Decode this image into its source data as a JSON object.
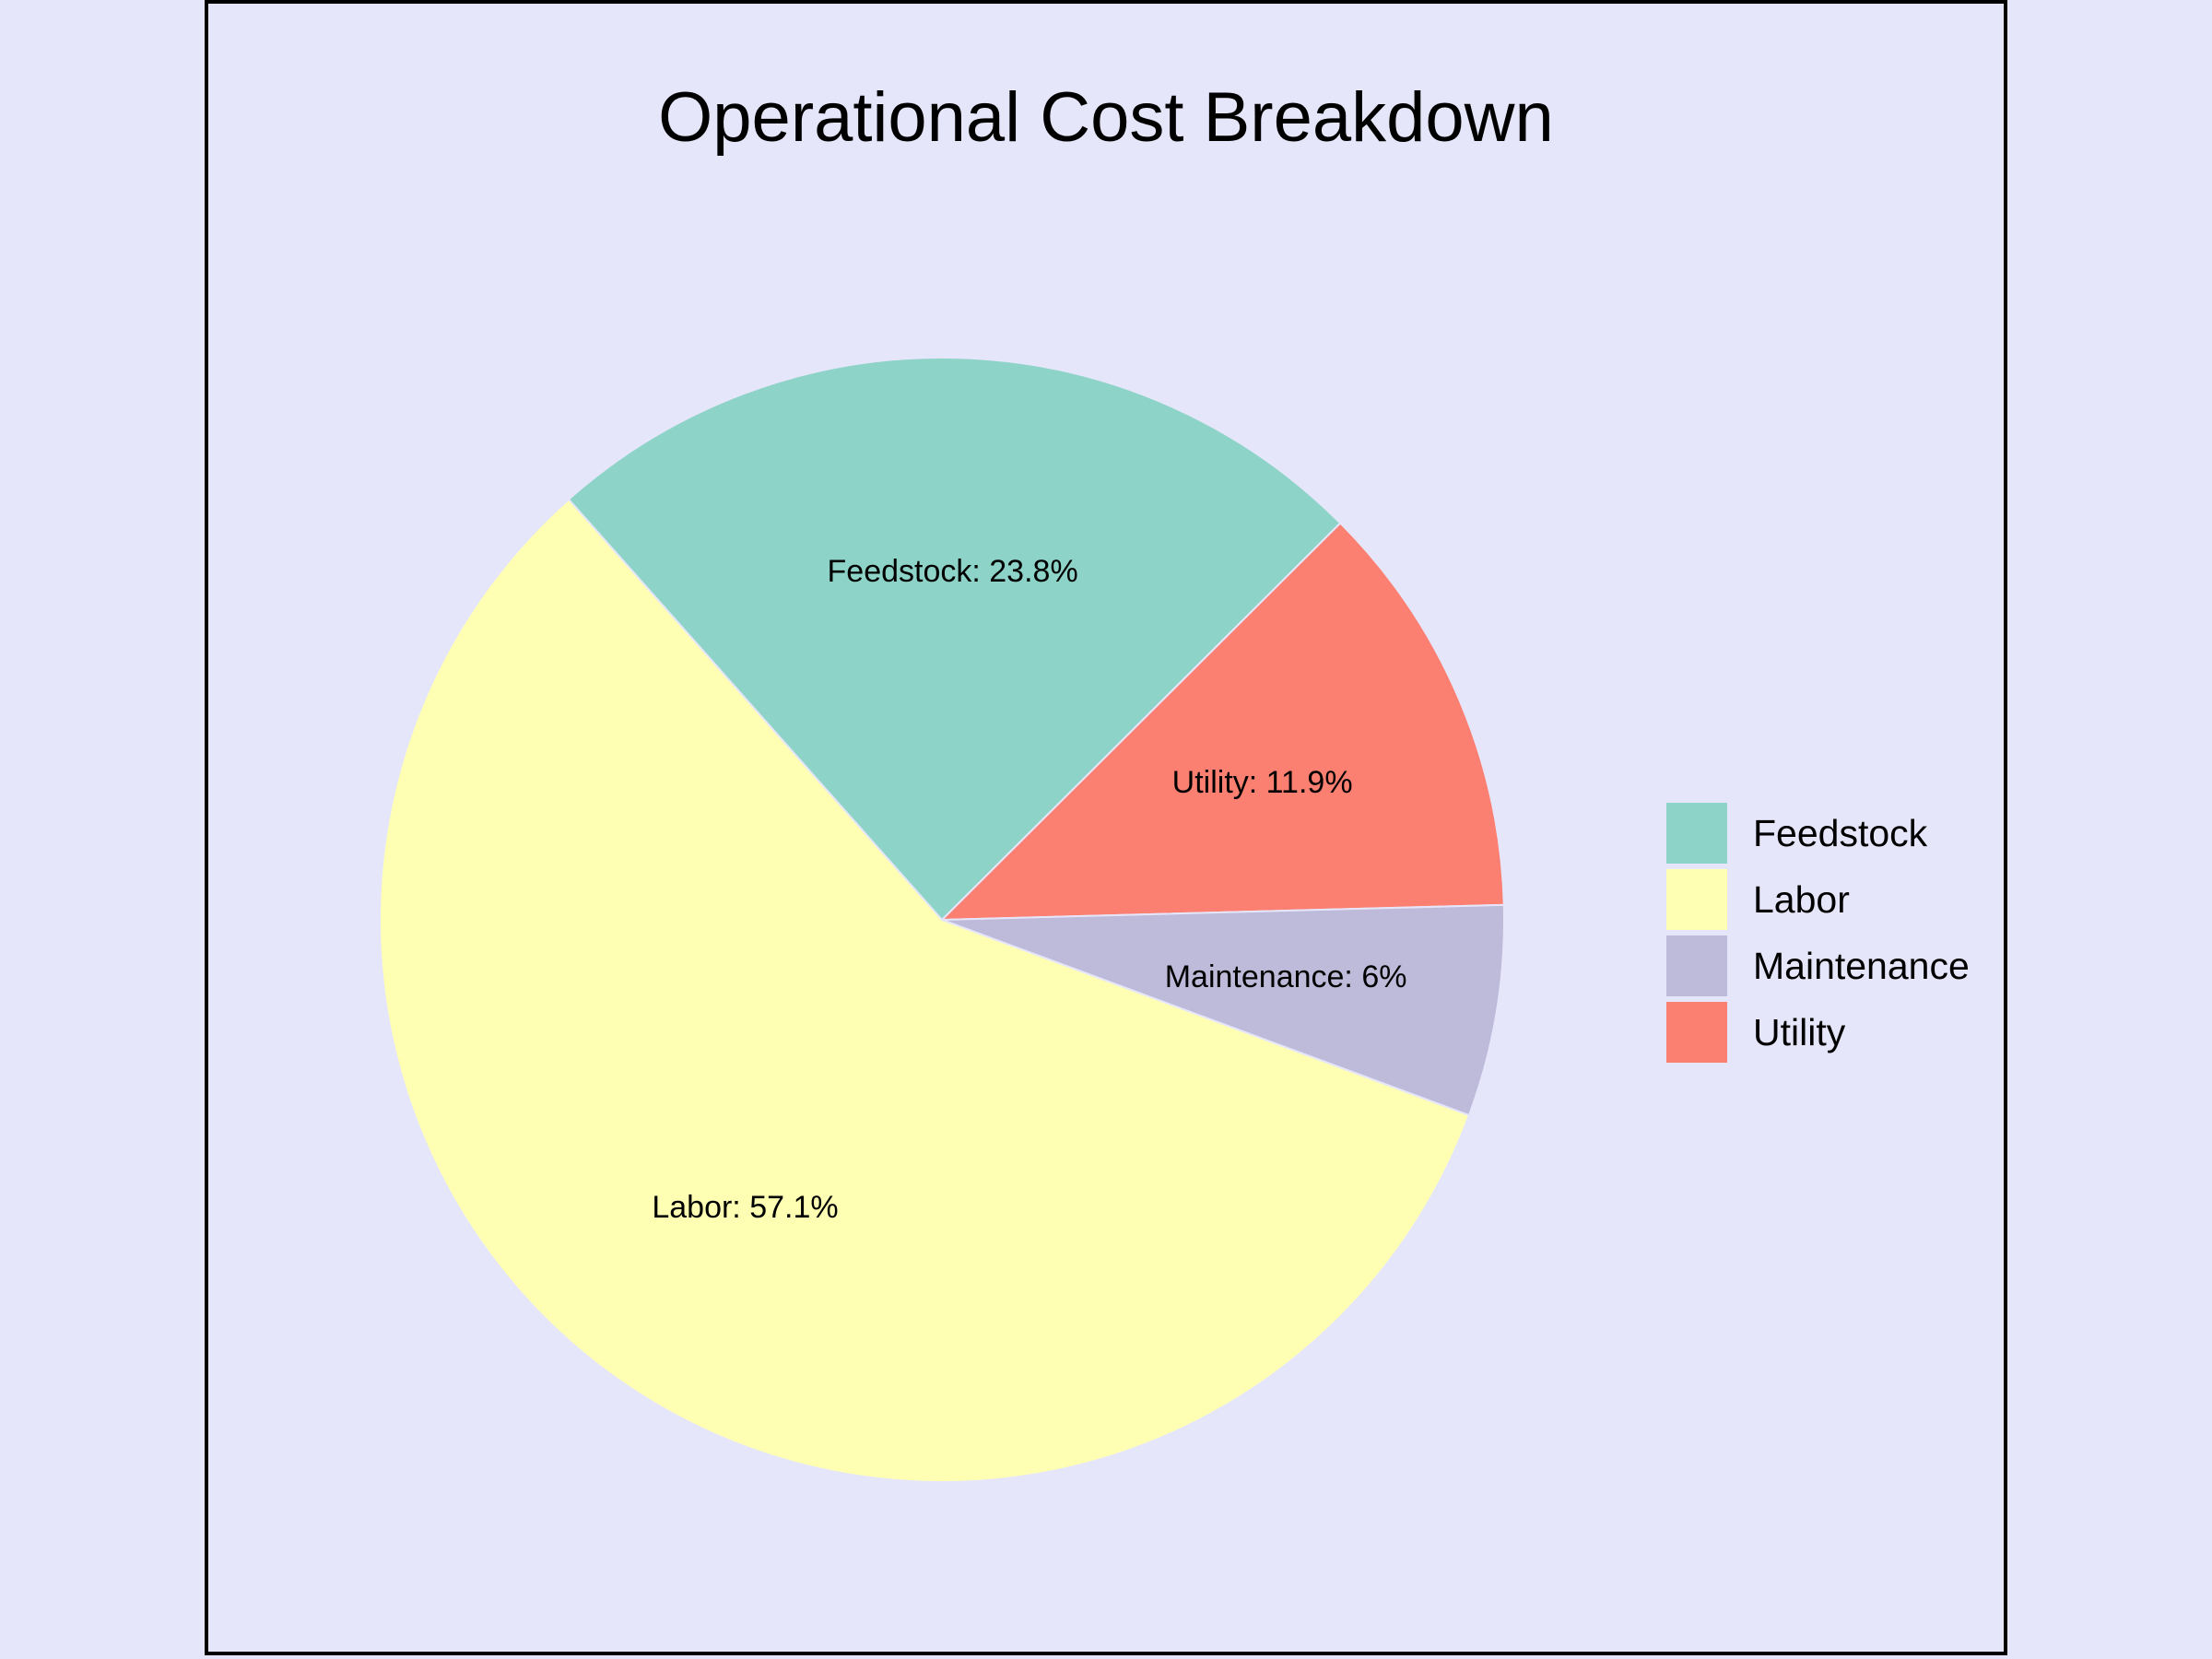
{
  "chart_data": {
    "type": "pie",
    "title": "Operational Cost Breakdown",
    "categories": [
      "Feedstock",
      "Labor",
      "Maintenance",
      "Utility"
    ],
    "values": [
      23.8,
      57.1,
      6.0,
      11.9
    ],
    "slice_labels": [
      "Feedstock: 23.8%",
      "Labor: 57.1%",
      "Maintenance: 6%",
      "Utility: 11.9%"
    ],
    "colors": [
      "#8dd3c7",
      "#ffffb3",
      "#bebada",
      "#fb8072"
    ],
    "slice_order": [
      "Feedstock",
      "Utility",
      "Maintenance",
      "Labor"
    ],
    "legend": {
      "position": "right",
      "items": [
        "Feedstock",
        "Labor",
        "Maintenance",
        "Utility"
      ]
    },
    "grid": false
  },
  "colors": {
    "background": "#e6e6fa",
    "frame": "#000000"
  }
}
